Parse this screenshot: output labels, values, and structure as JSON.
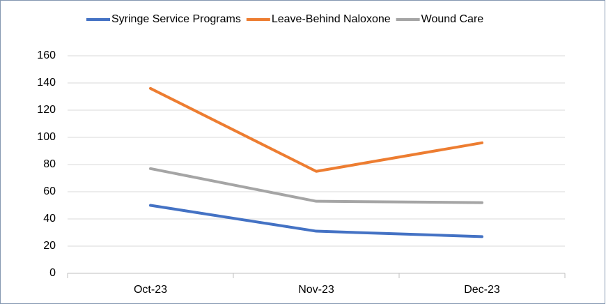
{
  "chart_data": {
    "type": "line",
    "categories": [
      "Oct-23",
      "Nov-23",
      "Dec-23"
    ],
    "series": [
      {
        "name": "Syringe Service Programs",
        "color": "#4472c4",
        "values": [
          50,
          31,
          27
        ]
      },
      {
        "name": "Leave-Behind Naloxone",
        "color": "#ed7d31",
        "values": [
          136,
          75,
          96
        ]
      },
      {
        "name": "Wound Care",
        "color": "#a5a5a5",
        "values": [
          77,
          53,
          52
        ]
      }
    ],
    "ylim": [
      0,
      160
    ],
    "yticks": [
      0,
      20,
      40,
      60,
      80,
      100,
      120,
      140,
      160
    ],
    "grid": true,
    "legend": "top"
  }
}
